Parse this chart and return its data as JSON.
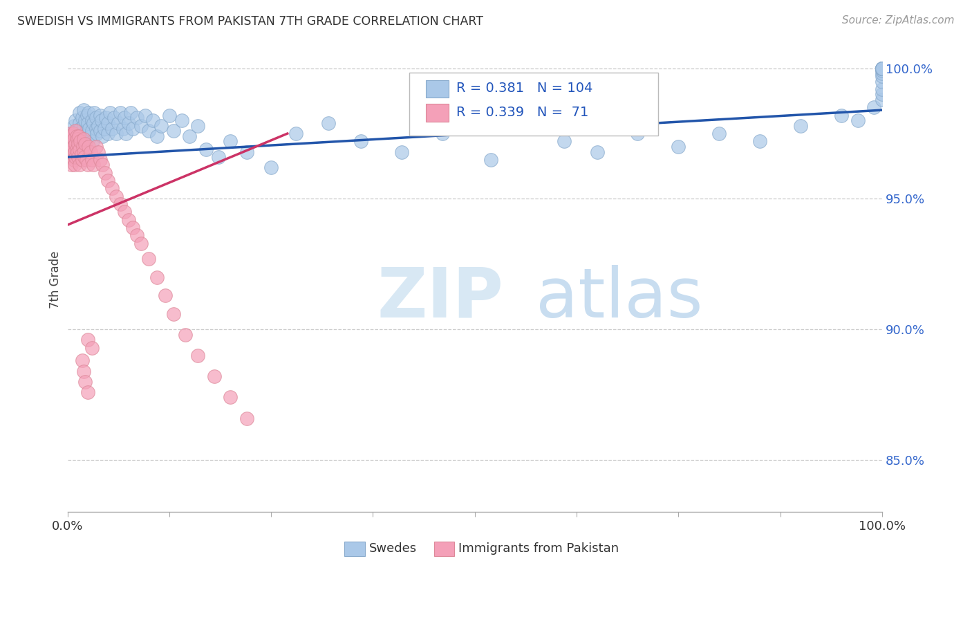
{
  "title": "SWEDISH VS IMMIGRANTS FROM PAKISTAN 7TH GRADE CORRELATION CHART",
  "source": "Source: ZipAtlas.com",
  "ylabel": "7th Grade",
  "ytick_values": [
    1.0,
    0.95,
    0.9,
    0.85
  ],
  "xlim": [
    0,
    1.0
  ],
  "ylim": [
    0.83,
    1.008
  ],
  "legend_blue_label": "Swedes",
  "legend_pink_label": "Immigrants from Pakistan",
  "r_blue": 0.381,
  "n_blue": 104,
  "r_pink": 0.339,
  "n_pink": 71,
  "blue_color": "#aac8e8",
  "pink_color": "#f4a0b8",
  "blue_edge": "#88aacc",
  "pink_edge": "#dd8899",
  "line_blue": "#2255aa",
  "line_pink": "#cc3366",
  "watermark_zip_color": "#d8e8f4",
  "watermark_atlas_color": "#c8ddf0",
  "blue_line_x": [
    0.0,
    1.0
  ],
  "blue_line_y": [
    0.966,
    0.984
  ],
  "pink_line_x": [
    0.0,
    0.27
  ],
  "pink_line_y": [
    0.94,
    0.975
  ],
  "blue_x": [
    0.005,
    0.007,
    0.008,
    0.01,
    0.01,
    0.012,
    0.013,
    0.015,
    0.015,
    0.016,
    0.017,
    0.018,
    0.019,
    0.02,
    0.02,
    0.021,
    0.022,
    0.023,
    0.024,
    0.025,
    0.025,
    0.026,
    0.027,
    0.028,
    0.03,
    0.03,
    0.031,
    0.032,
    0.033,
    0.035,
    0.035,
    0.036,
    0.038,
    0.04,
    0.04,
    0.042,
    0.043,
    0.045,
    0.047,
    0.05,
    0.05,
    0.052,
    0.055,
    0.057,
    0.06,
    0.062,
    0.065,
    0.068,
    0.07,
    0.072,
    0.075,
    0.078,
    0.08,
    0.085,
    0.09,
    0.095,
    0.1,
    0.105,
    0.11,
    0.115,
    0.125,
    0.13,
    0.14,
    0.15,
    0.16,
    0.17,
    0.185,
    0.2,
    0.22,
    0.25,
    0.28,
    0.32,
    0.36,
    0.41,
    0.46,
    0.52,
    0.56,
    0.61,
    0.65,
    0.7,
    0.75,
    0.8,
    0.85,
    0.9,
    0.95,
    0.97,
    0.99,
    1.0,
    1.0,
    1.0,
    1.0,
    1.0,
    1.0,
    1.0,
    1.0,
    1.0,
    1.0,
    1.0,
    1.0,
    1.0,
    1.0,
    1.0,
    1.0,
    1.0
  ],
  "blue_y": [
    0.975,
    0.972,
    0.978,
    0.974,
    0.98,
    0.976,
    0.971,
    0.979,
    0.983,
    0.977,
    0.974,
    0.981,
    0.97,
    0.978,
    0.984,
    0.973,
    0.98,
    0.976,
    0.982,
    0.975,
    0.979,
    0.983,
    0.977,
    0.974,
    0.98,
    0.976,
    0.972,
    0.979,
    0.983,
    0.977,
    0.981,
    0.975,
    0.978,
    0.982,
    0.976,
    0.98,
    0.974,
    0.977,
    0.981,
    0.975,
    0.979,
    0.983,
    0.977,
    0.981,
    0.975,
    0.979,
    0.983,
    0.977,
    0.981,
    0.975,
    0.979,
    0.983,
    0.977,
    0.981,
    0.978,
    0.982,
    0.976,
    0.98,
    0.974,
    0.978,
    0.982,
    0.976,
    0.98,
    0.974,
    0.978,
    0.969,
    0.966,
    0.972,
    0.968,
    0.962,
    0.975,
    0.979,
    0.972,
    0.968,
    0.975,
    0.965,
    0.978,
    0.972,
    0.968,
    0.975,
    0.97,
    0.975,
    0.972,
    0.978,
    0.982,
    0.98,
    0.985,
    0.988,
    0.99,
    0.992,
    0.995,
    0.997,
    0.998,
    0.999,
    1.0,
    1.0,
    1.0,
    1.0,
    1.0,
    1.0,
    1.0,
    1.0,
    1.0,
    1.0
  ],
  "pink_x": [
    0.002,
    0.003,
    0.003,
    0.004,
    0.004,
    0.005,
    0.005,
    0.005,
    0.006,
    0.006,
    0.007,
    0.007,
    0.008,
    0.008,
    0.009,
    0.009,
    0.01,
    0.01,
    0.01,
    0.011,
    0.011,
    0.012,
    0.012,
    0.013,
    0.013,
    0.014,
    0.015,
    0.015,
    0.016,
    0.017,
    0.018,
    0.019,
    0.02,
    0.02,
    0.021,
    0.022,
    0.023,
    0.025,
    0.026,
    0.028,
    0.03,
    0.032,
    0.035,
    0.038,
    0.04,
    0.043,
    0.046,
    0.05,
    0.055,
    0.06,
    0.065,
    0.07,
    0.075,
    0.08,
    0.085,
    0.09,
    0.1,
    0.11,
    0.12,
    0.13,
    0.145,
    0.16,
    0.18,
    0.2,
    0.22,
    0.025,
    0.03,
    0.018,
    0.02,
    0.022,
    0.025
  ],
  "pink_y": [
    0.972,
    0.968,
    0.975,
    0.971,
    0.966,
    0.974,
    0.969,
    0.963,
    0.972,
    0.967,
    0.975,
    0.97,
    0.965,
    0.973,
    0.968,
    0.963,
    0.976,
    0.971,
    0.966,
    0.974,
    0.969,
    0.973,
    0.968,
    0.971,
    0.966,
    0.974,
    0.969,
    0.963,
    0.972,
    0.967,
    0.965,
    0.97,
    0.968,
    0.973,
    0.966,
    0.971,
    0.965,
    0.963,
    0.97,
    0.968,
    0.965,
    0.963,
    0.97,
    0.968,
    0.965,
    0.963,
    0.96,
    0.957,
    0.954,
    0.951,
    0.948,
    0.945,
    0.942,
    0.939,
    0.936,
    0.933,
    0.927,
    0.92,
    0.913,
    0.906,
    0.898,
    0.89,
    0.882,
    0.874,
    0.866,
    0.896,
    0.893,
    0.888,
    0.884,
    0.88,
    0.876
  ]
}
